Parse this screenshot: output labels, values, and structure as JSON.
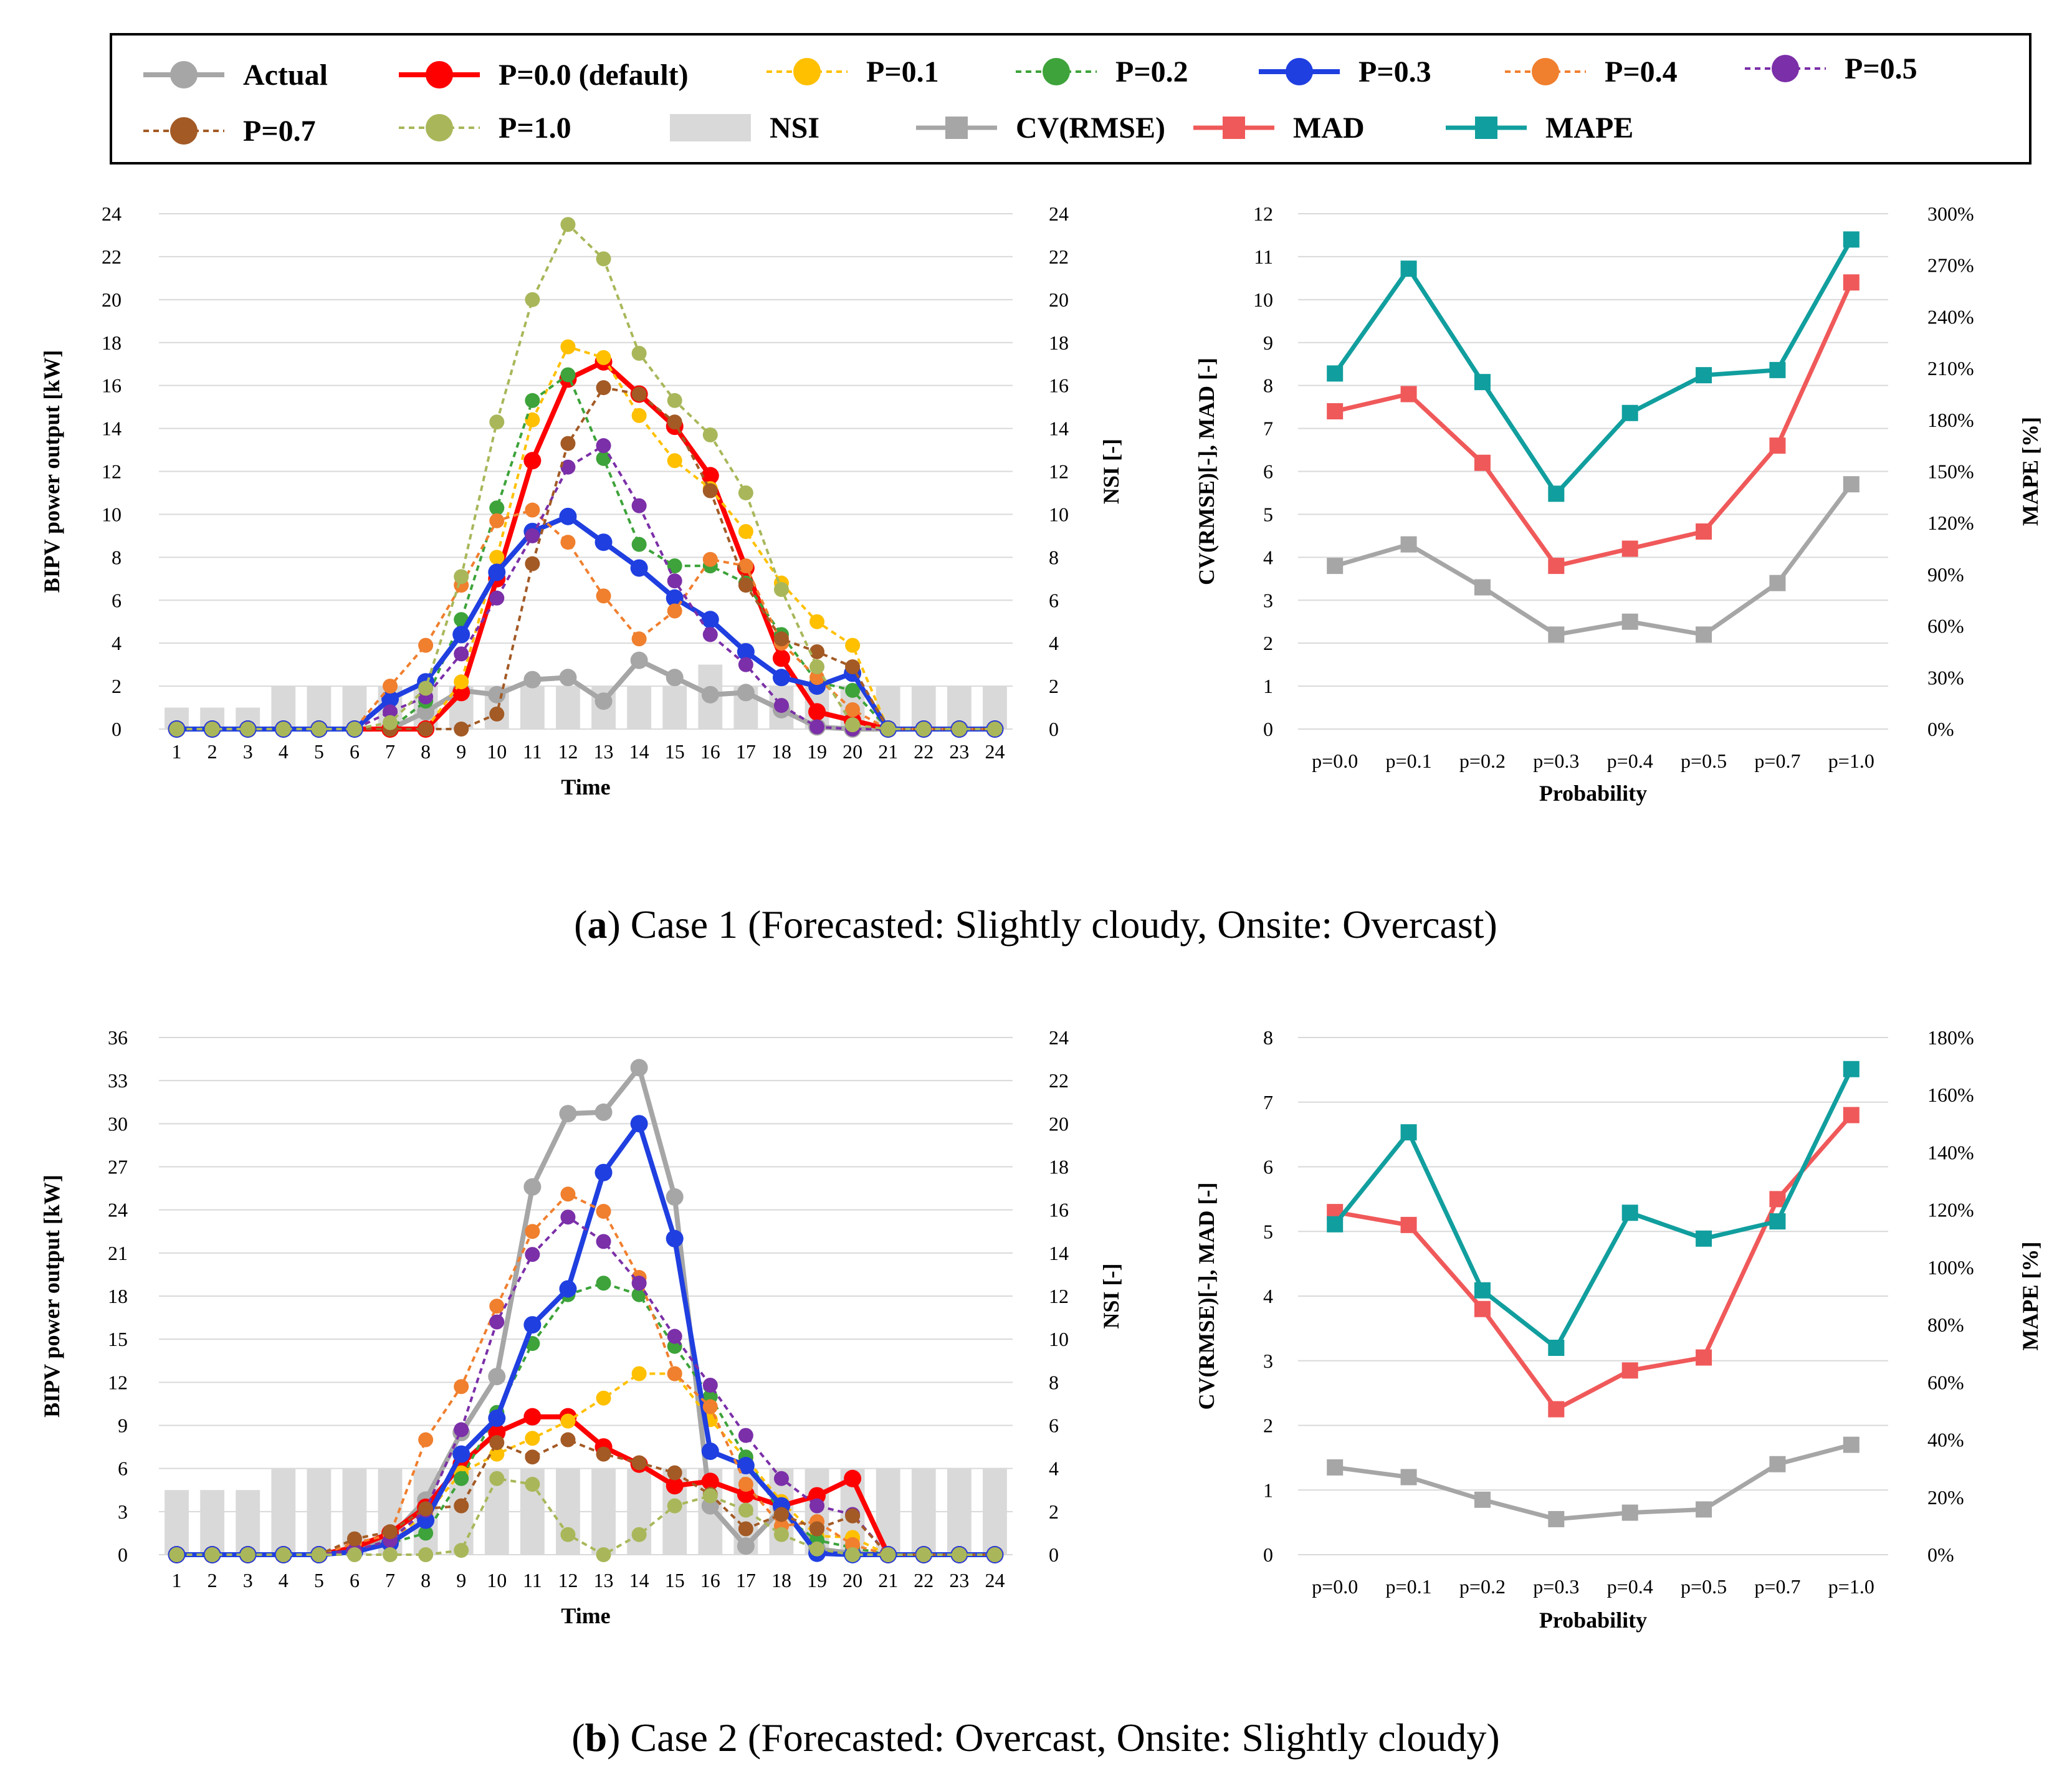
{
  "legend": {
    "items": [
      {
        "label": "Actual",
        "style": "actual"
      },
      {
        "label": "P=0.0 (default)",
        "style": "p00"
      },
      {
        "label": "P=0.1",
        "style": "p01"
      },
      {
        "label": "P=0.2",
        "style": "p02"
      },
      {
        "label": "P=0.3",
        "style": "p03"
      },
      {
        "label": "P=0.4",
        "style": "p04"
      },
      {
        "label": "P=0.5",
        "style": "p05"
      },
      {
        "label": "P=0.7",
        "style": "p07"
      },
      {
        "label": "P=1.0",
        "style": "p10"
      },
      {
        "label": "NSI",
        "style": "nsi"
      },
      {
        "label": "CV(RMSE)",
        "style": "cv"
      },
      {
        "label": "MAD",
        "style": "mad"
      },
      {
        "label": "MAPE",
        "style": "mape"
      }
    ]
  },
  "styles": {
    "actual": {
      "color": "#A6A6A6",
      "dash": false,
      "width": 8,
      "marker": "circle"
    },
    "p00": {
      "color": "#FF0000",
      "dash": false,
      "width": 8,
      "marker": "circle"
    },
    "p01": {
      "color": "#FFC000",
      "dash": true,
      "width": 4,
      "marker": "circle"
    },
    "p02": {
      "color": "#3DA33A",
      "dash": true,
      "width": 4,
      "marker": "circle"
    },
    "p03": {
      "color": "#1F3FE0",
      "dash": false,
      "width": 8,
      "marker": "circle"
    },
    "p04": {
      "color": "#F07F2E",
      "dash": true,
      "width": 4,
      "marker": "circle"
    },
    "p05": {
      "color": "#7B2FA8",
      "dash": true,
      "width": 4,
      "marker": "circle"
    },
    "p07": {
      "color": "#A35A25",
      "dash": true,
      "width": 4,
      "marker": "circle"
    },
    "p10": {
      "color": "#A9B75A",
      "dash": true,
      "width": 4,
      "marker": "circle"
    },
    "nsi": {
      "color": "#D9D9D9"
    },
    "cv": {
      "color": "#A6A6A6",
      "dash": false,
      "width": 7,
      "marker": "square"
    },
    "mad": {
      "color": "#F0595A",
      "dash": false,
      "width": 7,
      "marker": "square"
    },
    "mape": {
      "color": "#119E9E",
      "dash": false,
      "width": 7,
      "marker": "square"
    }
  },
  "chart_data": [
    {
      "type": "line",
      "id": "case1-forecast",
      "xlabel": "Time",
      "ylabel": "BIPV power output [kW]",
      "y2label": "NSI [-]",
      "ylim": [
        0,
        24
      ],
      "yticks": [
        0,
        2,
        4,
        6,
        8,
        10,
        12,
        14,
        16,
        18,
        20,
        22,
        24
      ],
      "y2lim": [
        0,
        24
      ],
      "y2ticks": [
        0,
        2,
        4,
        6,
        8,
        10,
        12,
        14,
        16,
        18,
        20,
        22,
        24
      ],
      "categories": [
        "1",
        "2",
        "3",
        "4",
        "5",
        "6",
        "7",
        "8",
        "9",
        "10",
        "11",
        "12",
        "13",
        "14",
        "15",
        "16",
        "17",
        "18",
        "19",
        "20",
        "21",
        "22",
        "23",
        "24"
      ],
      "bars": {
        "name": "NSI",
        "values": [
          1,
          1,
          1,
          2,
          2,
          2,
          2,
          2,
          2,
          2,
          2,
          2,
          2,
          2,
          2,
          3,
          2,
          2,
          2,
          2,
          2,
          2,
          2,
          2
        ]
      },
      "series": [
        {
          "name": "Actual",
          "style": "actual",
          "values": [
            0,
            0,
            0,
            0,
            0,
            0,
            0,
            0.8,
            1.8,
            1.6,
            2.3,
            2.4,
            1.3,
            3.2,
            2.4,
            1.6,
            1.7,
            0.9,
            0.1,
            0,
            0,
            0,
            0,
            0
          ]
        },
        {
          "name": "P=0.0 (default)",
          "style": "p00",
          "values": [
            0,
            0,
            0,
            0,
            0,
            0,
            0,
            0,
            1.7,
            7.0,
            12.5,
            16.3,
            17.1,
            15.6,
            14.1,
            11.8,
            7.5,
            3.3,
            0.8,
            0.4,
            0,
            0,
            0,
            0
          ]
        },
        {
          "name": "P=0.1",
          "style": "p01",
          "values": [
            0,
            0,
            0,
            0,
            0,
            0,
            0,
            0,
            2.2,
            8.0,
            14.4,
            17.8,
            17.3,
            14.6,
            12.5,
            11.2,
            9.2,
            6.8,
            5.0,
            3.9,
            0,
            0,
            0,
            0
          ]
        },
        {
          "name": "P=0.2",
          "style": "p02",
          "values": [
            0,
            0,
            0,
            0,
            0,
            0,
            0,
            1.3,
            5.1,
            10.3,
            15.3,
            16.5,
            12.6,
            8.6,
            7.6,
            7.6,
            6.8,
            4.4,
            2.2,
            1.8,
            0,
            0,
            0,
            0
          ]
        },
        {
          "name": "P=0.3",
          "style": "p03",
          "values": [
            0,
            0,
            0,
            0,
            0,
            0,
            1.4,
            2.2,
            4.4,
            7.3,
            9.2,
            9.9,
            8.7,
            7.5,
            6.1,
            5.1,
            3.6,
            2.4,
            2.0,
            2.6,
            0,
            0,
            0,
            0
          ]
        },
        {
          "name": "P=0.4",
          "style": "p04",
          "values": [
            0,
            0,
            0,
            0,
            0,
            0,
            2.0,
            3.9,
            6.7,
            9.7,
            10.2,
            8.7,
            6.2,
            4.2,
            5.5,
            7.9,
            7.6,
            4.0,
            2.4,
            0.9,
            0,
            0,
            0,
            0
          ]
        },
        {
          "name": "P=0.5",
          "style": "p05",
          "values": [
            0,
            0,
            0,
            0,
            0,
            0,
            0.8,
            1.5,
            3.5,
            6.1,
            9.0,
            12.2,
            13.2,
            10.4,
            6.9,
            4.4,
            3.0,
            1.1,
            0.1,
            0,
            0,
            0,
            0,
            0
          ]
        },
        {
          "name": "P=0.7",
          "style": "p07",
          "values": [
            0,
            0,
            0,
            0,
            0,
            0,
            0,
            0,
            0,
            0.7,
            7.7,
            13.3,
            15.9,
            15.6,
            14.3,
            11.1,
            6.7,
            4.2,
            3.6,
            2.9,
            0,
            0,
            0,
            0
          ]
        },
        {
          "name": "P=1.0",
          "style": "p10",
          "values": [
            0,
            0,
            0,
            0,
            0,
            0,
            0.3,
            1.9,
            7.1,
            14.3,
            20.0,
            23.5,
            21.9,
            17.5,
            15.3,
            13.7,
            11.0,
            6.5,
            2.9,
            0.2,
            0,
            0,
            0,
            0
          ]
        }
      ]
    },
    {
      "type": "line",
      "id": "case1-error",
      "xlabel": "Probability",
      "ylabel": "CV(RMSE)[-], MAD [-]",
      "y2label": "MAPE [%]",
      "ylim": [
        0,
        12
      ],
      "yticks": [
        0,
        1,
        2,
        3,
        4,
        5,
        6,
        7,
        8,
        9,
        10,
        11,
        12
      ],
      "y2lim": [
        0,
        300
      ],
      "y2ticks": [
        "0%",
        "30%",
        "60%",
        "90%",
        "120%",
        "150%",
        "180%",
        "210%",
        "240%",
        "270%",
        "300%"
      ],
      "categories": [
        "p=0.0",
        "p=0.1",
        "p=0.2",
        "p=0.3",
        "p=0.4",
        "p=0.5",
        "p=0.7",
        "p=1.0"
      ],
      "series": [
        {
          "name": "CV(RMSE)",
          "style": "cv",
          "axis": "left",
          "values": [
            3.8,
            4.3,
            3.3,
            2.2,
            2.5,
            2.2,
            3.4,
            5.7
          ]
        },
        {
          "name": "MAD",
          "style": "mad",
          "axis": "left",
          "values": [
            7.4,
            7.8,
            6.2,
            3.8,
            4.2,
            4.6,
            6.6,
            10.4
          ]
        },
        {
          "name": "MAPE",
          "style": "mape",
          "axis": "right",
          "values": [
            207,
            268,
            202,
            137,
            184,
            206,
            209,
            285
          ]
        }
      ]
    },
    {
      "type": "line",
      "id": "case2-forecast",
      "xlabel": "Time",
      "ylabel": "BIPV power output [kW]",
      "y2label": "NSI [-]",
      "ylim": [
        0,
        36
      ],
      "yticks": [
        0,
        3,
        6,
        9,
        12,
        15,
        18,
        21,
        24,
        27,
        30,
        33,
        36
      ],
      "y2lim": [
        0,
        24
      ],
      "y2ticks": [
        0,
        2,
        4,
        6,
        8,
        10,
        12,
        14,
        16,
        18,
        20,
        22,
        24
      ],
      "categories": [
        "1",
        "2",
        "3",
        "4",
        "5",
        "6",
        "7",
        "8",
        "9",
        "10",
        "11",
        "12",
        "13",
        "14",
        "15",
        "16",
        "17",
        "18",
        "19",
        "20",
        "21",
        "22",
        "23",
        "24"
      ],
      "bars": {
        "name": "NSI",
        "values": [
          3,
          3,
          3,
          4,
          4,
          4,
          4,
          4,
          4,
          4,
          4,
          4,
          4,
          4,
          4,
          4,
          4,
          4,
          4,
          4,
          4,
          4,
          4,
          4
        ]
      },
      "series": [
        {
          "name": "Actual",
          "style": "actual",
          "values": [
            0,
            0,
            0,
            0,
            0,
            0.2,
            1.2,
            3.8,
            8.5,
            12.4,
            25.6,
            30.7,
            30.8,
            33.9,
            24.9,
            3.4,
            0.6,
            3.2,
            0.4,
            0.1,
            0,
            0,
            0,
            0
          ]
        },
        {
          "name": "P=0.0 (default)",
          "style": "p00",
          "values": [
            0,
            0,
            0,
            0,
            0,
            0.5,
            1.5,
            3.3,
            6.3,
            8.5,
            9.6,
            9.6,
            7.5,
            6.3,
            4.8,
            5.1,
            4.2,
            3.4,
            4.1,
            5.3,
            0,
            0,
            0,
            0
          ]
        },
        {
          "name": "P=0.1",
          "style": "p01",
          "values": [
            0,
            0,
            0,
            0,
            0,
            0.3,
            1.0,
            2.8,
            5.7,
            7.0,
            8.1,
            9.3,
            10.9,
            12.6,
            12.6,
            9.4,
            6.7,
            3.7,
            1.3,
            1.2,
            0,
            0,
            0,
            0
          ]
        },
        {
          "name": "P=0.2",
          "style": "p02",
          "values": [
            0,
            0,
            0,
            0,
            0,
            0.3,
            0.8,
            1.5,
            5.3,
            9.9,
            14.7,
            18.1,
            18.9,
            18.1,
            14.5,
            11.0,
            6.8,
            2.8,
            1.0,
            0.5,
            0,
            0,
            0,
            0
          ]
        },
        {
          "name": "P=0.3",
          "style": "p03",
          "values": [
            0,
            0,
            0,
            0,
            0,
            0.2,
            0.8,
            2.4,
            7.0,
            9.5,
            16.0,
            18.5,
            26.6,
            30.0,
            22.0,
            7.2,
            6.2,
            3.4,
            0.1,
            0,
            0,
            0,
            0,
            0
          ]
        },
        {
          "name": "P=0.4",
          "style": "p04",
          "values": [
            0,
            0,
            0,
            0,
            0,
            0.8,
            1.4,
            8.0,
            11.7,
            17.3,
            22.5,
            25.1,
            23.9,
            19.3,
            12.6,
            10.3,
            4.9,
            2.0,
            2.3,
            0.7,
            0,
            0,
            0,
            0
          ]
        },
        {
          "name": "P=0.5",
          "style": "p05",
          "values": [
            0,
            0,
            0,
            0,
            0,
            0.3,
            1.0,
            3.1,
            8.7,
            16.2,
            20.9,
            23.5,
            21.8,
            18.9,
            15.2,
            11.8,
            8.3,
            5.3,
            3.4,
            2.8,
            0,
            0,
            0,
            0
          ]
        },
        {
          "name": "P=0.7",
          "style": "p07",
          "values": [
            0,
            0,
            0,
            0,
            0,
            1.1,
            1.6,
            3.2,
            3.4,
            7.8,
            6.8,
            8.0,
            7.0,
            6.4,
            5.7,
            4.2,
            1.8,
            2.8,
            1.8,
            2.7,
            0,
            0,
            0,
            0
          ]
        },
        {
          "name": "P=1.0",
          "style": "p10",
          "values": [
            0,
            0,
            0,
            0,
            0,
            0,
            0,
            0,
            0.3,
            5.3,
            4.9,
            1.4,
            0,
            1.4,
            3.4,
            4.1,
            3.1,
            1.4,
            0.4,
            0,
            0,
            0,
            0,
            0
          ]
        }
      ]
    },
    {
      "type": "line",
      "id": "case2-error",
      "xlabel": "Probability",
      "ylabel": "CV(RMSE)[-], MAD [-]",
      "y2label": "MAPE [%]",
      "ylim": [
        0,
        8
      ],
      "yticks": [
        0,
        1,
        2,
        3,
        4,
        5,
        6,
        7,
        8
      ],
      "y2lim": [
        0,
        180
      ],
      "y2ticks": [
        "0%",
        "20%",
        "40%",
        "60%",
        "80%",
        "100%",
        "120%",
        "140%",
        "160%",
        "180%"
      ],
      "categories": [
        "p=0.0",
        "p=0.1",
        "p=0.2",
        "p=0.3",
        "p=0.4",
        "p=0.5",
        "p=0.7",
        "p=1.0"
      ],
      "series": [
        {
          "name": "CV(RMSE)",
          "style": "cv",
          "axis": "left",
          "values": [
            1.35,
            1.2,
            0.85,
            0.55,
            0.65,
            0.7,
            1.4,
            1.7
          ]
        },
        {
          "name": "MAD",
          "style": "mad",
          "axis": "left",
          "values": [
            5.3,
            5.1,
            3.8,
            2.25,
            2.85,
            3.05,
            5.5,
            6.8
          ]
        },
        {
          "name": "MAPE",
          "style": "mape",
          "axis": "right",
          "values": [
            115,
            147,
            92,
            72,
            119,
            110,
            116,
            169
          ]
        }
      ]
    }
  ],
  "captions": {
    "case1": {
      "letter": "a",
      "text": " Case 1 (Forecasted: Slightly cloudy, Onsite: Overcast)"
    },
    "case2": {
      "letter": "b",
      "text": " Case 2 (Forecasted: Overcast, Onsite: Slightly cloudy)"
    }
  }
}
